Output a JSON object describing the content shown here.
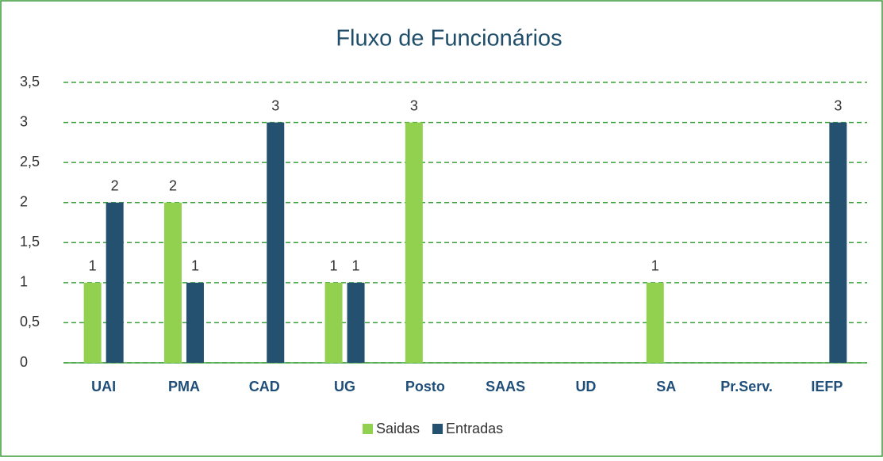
{
  "chart_data": {
    "type": "bar",
    "title": "Fluxo de Funcionários",
    "categories": [
      "UAI",
      "PMA",
      "CAD",
      "UG",
      "Posto",
      "SAAS",
      "UD",
      "SA",
      "Pr.Serv.",
      "IEFP"
    ],
    "series": [
      {
        "name": "Saidas",
        "color": "#92d050",
        "values": [
          1,
          2,
          null,
          1,
          3,
          null,
          null,
          1,
          null,
          null
        ]
      },
      {
        "name": "Entradas",
        "color": "#255170",
        "values": [
          2,
          1,
          3,
          1,
          null,
          null,
          null,
          null,
          null,
          3
        ]
      }
    ],
    "ylim": [
      0,
      3.5
    ],
    "yticks": [
      0,
      {
        "value": 0.5,
        "label": "0,5"
      },
      1,
      {
        "value": 1.5,
        "label": "1,5"
      },
      2,
      {
        "value": 2.5,
        "label": "2,5"
      },
      3,
      {
        "value": 3.5,
        "label": "3,5"
      }
    ],
    "grid": true,
    "legend": "bottom"
  }
}
